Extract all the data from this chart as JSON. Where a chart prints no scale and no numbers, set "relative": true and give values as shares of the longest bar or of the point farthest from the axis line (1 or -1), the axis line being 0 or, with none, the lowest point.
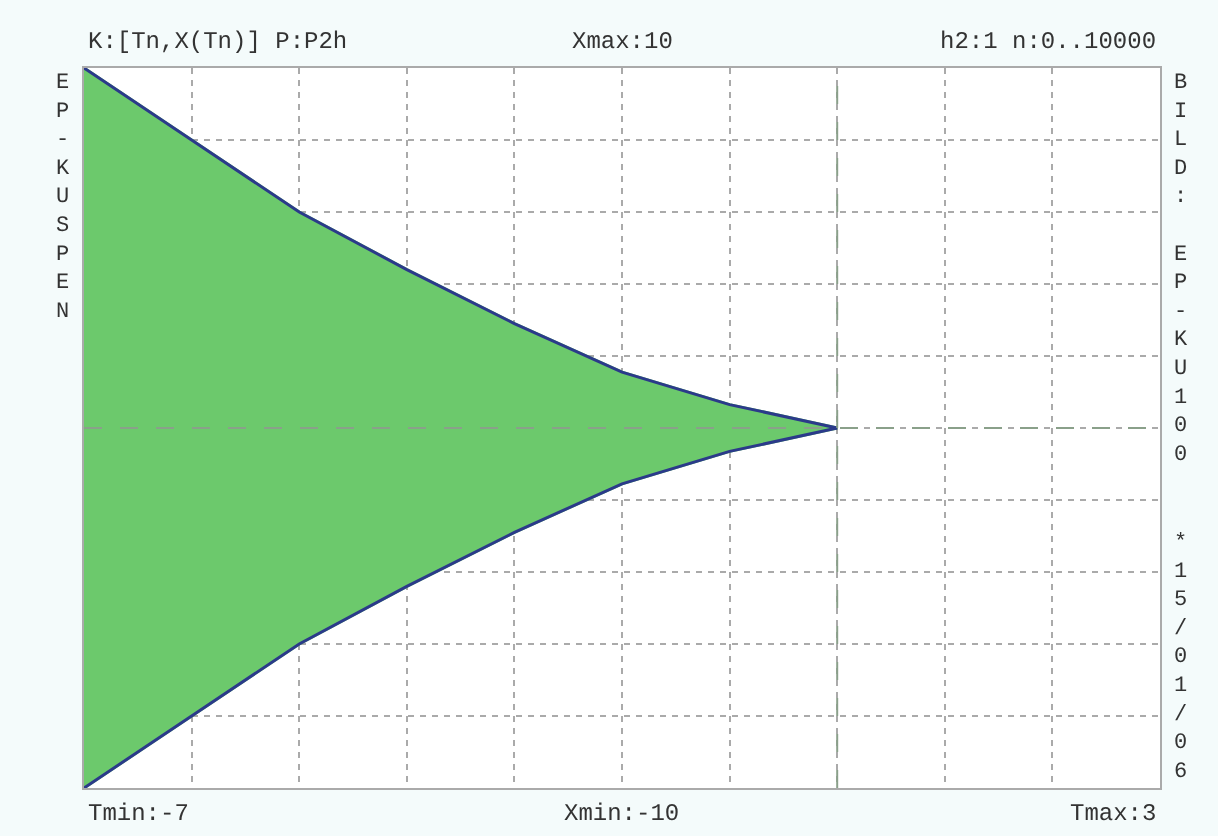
{
  "chart_data": {
    "type": "area",
    "relative": true,
    "categories": [
      null,
      null,
      null,
      null,
      null,
      null,
      null,
      null,
      null,
      null,
      null
    ],
    "series": [
      {
        "color": "#6cc96c",
        "values": [
          1,
          0.8,
          0.6,
          0.44,
          0.29,
          0.155,
          0.065,
          0,
          null,
          null,
          null
        ]
      },
      {
        "color": "#6cc96c",
        "values": [
          -1,
          -0.8,
          -0.6,
          -0.44,
          -0.29,
          -0.155,
          -0.065,
          0,
          null,
          null,
          null
        ]
      }
    ],
    "grid": true,
    "marker": "none",
    "line_style": "solid",
    "ref_lines": [
      {
        "axis": "y",
        "value": 0,
        "color": "#8aa08a",
        "line_style": "dashed"
      }
    ],
    "annotations": [
      "K:[Tn,X(Tn)] P:P2h",
      "Xmax:10",
      "h2:1 n:0..10000",
      "Tmin:-7",
      "Xmin:-10",
      "Tmax:3",
      "EP-KUSPEN",
      "BILD: EP-KU100",
      "*15/01/06"
    ]
  }
}
